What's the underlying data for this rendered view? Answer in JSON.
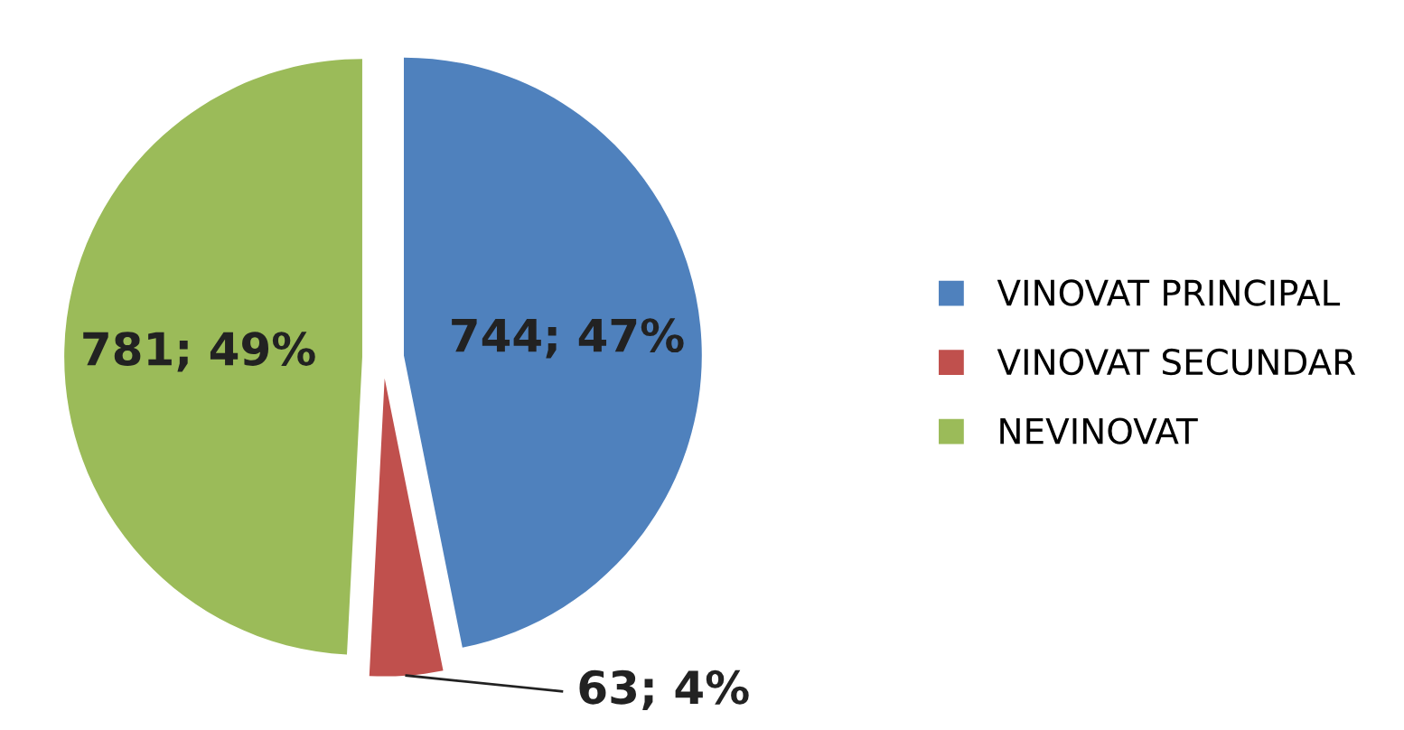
{
  "chart_data": {
    "type": "pie",
    "categories": [
      "VINOVAT PRINCIPAL",
      "VINOVAT SECUNDAR",
      "NEVINOVAT"
    ],
    "values": [
      744,
      63,
      781
    ],
    "colors": [
      "#4f81bd",
      "#c0504d",
      "#9bbb59"
    ],
    "value_labels": [
      "744; 47%",
      "63; 4%",
      "781; 49%"
    ],
    "legend": "right"
  }
}
